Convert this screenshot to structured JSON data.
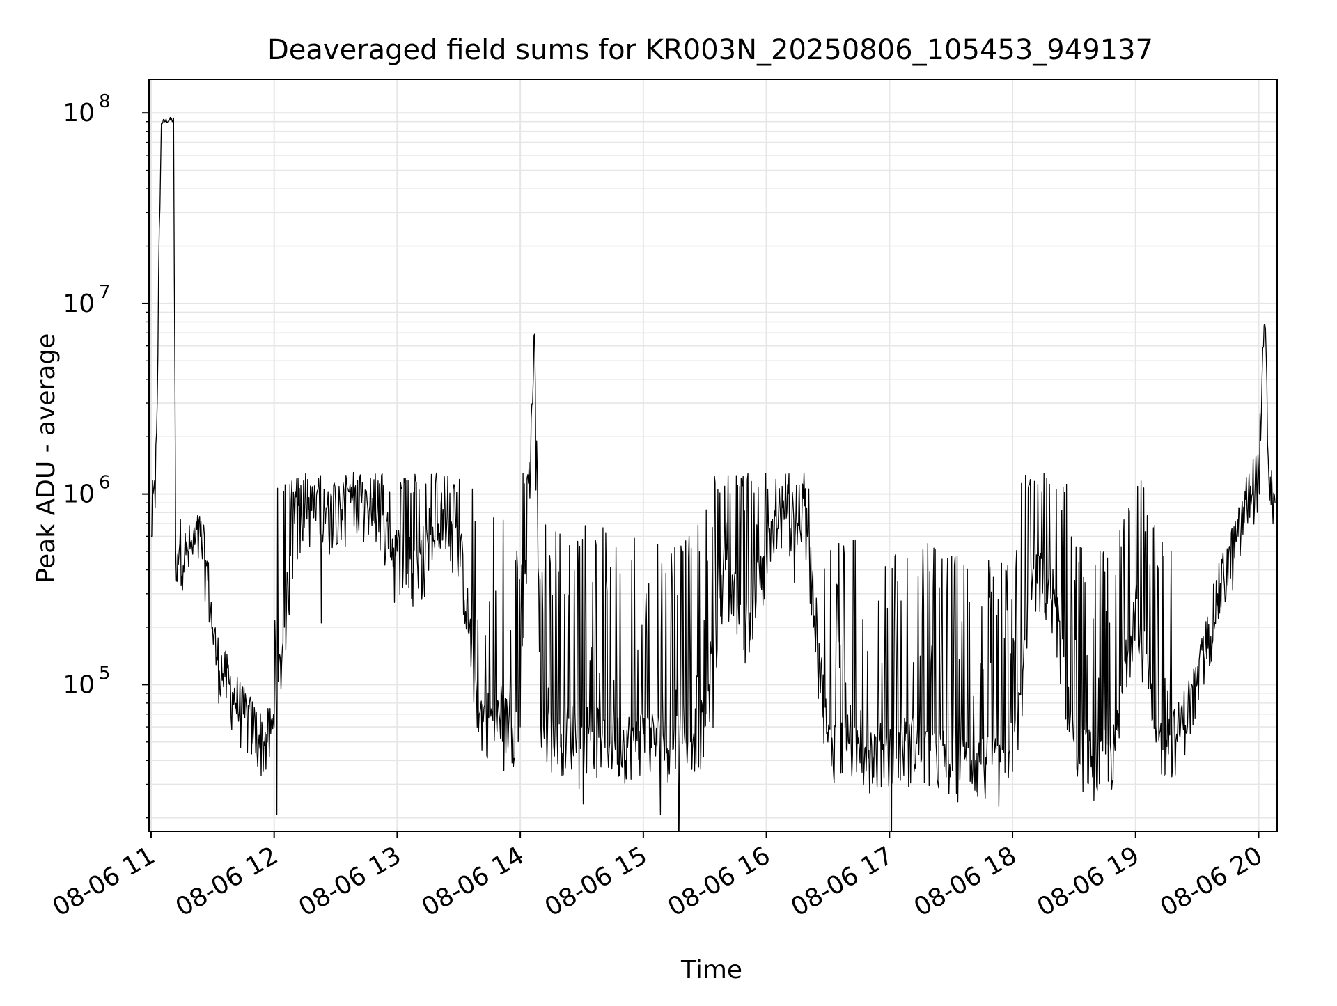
{
  "chart_data": {
    "type": "line",
    "title": "Deaveraged field sums for KR003N_20250806_105453_949137",
    "xlabel": "Time",
    "ylabel": "Peak ADU - average",
    "yscale": "log",
    "ylim": [
      17000,
      150000000
    ],
    "xlim": [
      "2025-08-06 10:59",
      "2025-08-06 20:09"
    ],
    "x_ticks": [
      "08-06 11",
      "08-06 12",
      "08-06 13",
      "08-06 14",
      "08-06 15",
      "08-06 16",
      "08-06 17",
      "08-06 18",
      "08-06 19",
      "08-06 20"
    ],
    "y_ticks": [
      {
        "base": "10",
        "exp": "5",
        "value": 100000
      },
      {
        "base": "10",
        "exp": "6",
        "value": 1000000
      },
      {
        "base": "10",
        "exp": "7",
        "value": 10000000
      },
      {
        "base": "10",
        "exp": "8",
        "value": 100000000
      }
    ],
    "grid": true,
    "line_color": "#000000",
    "series": [
      {
        "x": [
          "2025-08-06 11:00",
          "2025-08-06 11:01",
          "2025-08-06 11:02",
          "2025-08-06 11:05",
          "2025-08-06 11:08",
          "2025-08-06 11:11",
          "2025-08-06 11:12",
          "2025-08-06 11:14",
          "2025-08-06 11:17",
          "2025-08-06 11:20",
          "2025-08-06 11:24",
          "2025-08-06 11:27",
          "2025-08-06 11:30",
          "2025-08-06 11:32",
          "2025-08-06 11:36",
          "2025-08-06 11:40",
          "2025-08-06 11:45",
          "2025-08-06 11:50",
          "2025-08-06 11:55",
          "2025-08-06 12:00",
          "2025-08-06 12:05",
          "2025-08-06 12:10",
          "2025-08-06 12:15",
          "2025-08-06 12:20",
          "2025-08-06 12:25",
          "2025-08-06 12:30",
          "2025-08-06 12:40",
          "2025-08-06 12:50",
          "2025-08-06 13:00",
          "2025-08-06 13:10",
          "2025-08-06 13:20",
          "2025-08-06 13:30",
          "2025-08-06 13:40",
          "2025-08-06 13:50",
          "2025-08-06 14:00",
          "2025-08-06 14:07",
          "2025-08-06 14:10",
          "2025-08-06 14:20",
          "2025-08-06 14:30",
          "2025-08-06 14:40",
          "2025-08-06 14:50",
          "2025-08-06 15:00",
          "2025-08-06 15:10",
          "2025-08-06 15:20",
          "2025-08-06 15:30",
          "2025-08-06 15:40",
          "2025-08-06 15:50",
          "2025-08-06 16:00",
          "2025-08-06 16:10",
          "2025-08-06 16:20",
          "2025-08-06 16:30",
          "2025-08-06 16:40",
          "2025-08-06 16:50",
          "2025-08-06 17:00",
          "2025-08-06 17:10",
          "2025-08-06 17:20",
          "2025-08-06 17:30",
          "2025-08-06 17:40",
          "2025-08-06 17:50",
          "2025-08-06 18:00",
          "2025-08-06 18:10",
          "2025-08-06 18:20",
          "2025-08-06 18:30",
          "2025-08-06 18:40",
          "2025-08-06 18:50",
          "2025-08-06 19:00",
          "2025-08-06 19:10",
          "2025-08-06 19:20",
          "2025-08-06 19:30",
          "2025-08-06 19:40",
          "2025-08-06 19:50",
          "2025-08-06 19:55",
          "2025-08-06 20:00",
          "2025-08-06 20:03",
          "2025-08-06 20:05",
          "2025-08-06 20:08"
        ],
        "y": [
          600000,
          1000000,
          850000,
          92000000,
          95000000,
          95000000,
          500000,
          550000,
          480000,
          520000,
          600000,
          420000,
          200000,
          140000,
          110000,
          90000,
          70000,
          60000,
          50000,
          60000,
          200000,
          700000,
          900000,
          800000,
          700000,
          900000,
          800000,
          700000,
          500000,
          400000,
          700000,
          600000,
          70000,
          65000,
          60000,
          6900000,
          60000,
          55000,
          60000,
          55000,
          50000,
          55000,
          50000,
          55000,
          60000,
          400000,
          200000,
          500000,
          800000,
          600000,
          50000,
          50000,
          45000,
          45000,
          50000,
          45000,
          40000,
          40000,
          38000,
          35000,
          400000,
          300000,
          50000,
          40000,
          45000,
          300000,
          50000,
          55000,
          100000,
          300000,
          600000,
          1000000,
          1300000,
          7800000,
          1200000,
          900000
        ]
      }
    ]
  }
}
